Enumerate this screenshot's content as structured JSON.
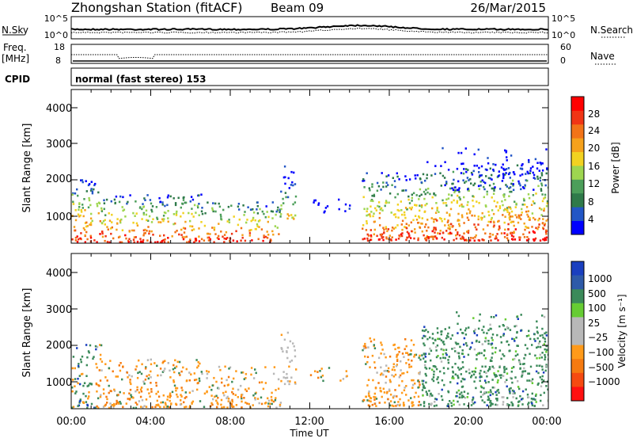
{
  "header": {
    "title": "Zhongshan Station (fitACF)",
    "beam": "Beam 09",
    "date": "26/Mar/2015"
  },
  "strip_noise": {
    "left_label": "N.Sky",
    "left_ticks": [
      "10^5",
      "10^0"
    ],
    "right_label": "N.Search",
    "right_ticks": [
      "10^5",
      "10^0"
    ]
  },
  "strip_freq": {
    "left_label_1": "Freq.",
    "left_label_2": "[MHz]",
    "left_ticks": [
      "18",
      "8"
    ],
    "right_label": "Nave",
    "right_ticks": [
      "60",
      "0"
    ]
  },
  "strip_cpid": {
    "label": "CPID",
    "text": "normal (fast stereo) 153"
  },
  "colors": {
    "power_scale": [
      "#0000ff",
      "#2256c6",
      "#2f7a4a",
      "#4c9e5a",
      "#9ed650",
      "#f2d221",
      "#f5a11c",
      "#f27318",
      "#f03515",
      "#ff0000"
    ],
    "velocity_scale": [
      "#1a3fbf",
      "#2e5aa8",
      "#3b8a5a",
      "#66cc33",
      "#b8b8b8",
      "#b8b8b8",
      "#ff9a1a",
      "#f57a10",
      "#f54a10",
      "#ff1010"
    ]
  },
  "chart_data": [
    {
      "type": "heatmap",
      "name": "power",
      "ylabel": "Slant Range [km]",
      "yticks": [
        "1000",
        "2000",
        "3000",
        "4000"
      ],
      "ylim": [
        300,
        4600
      ],
      "xlim": [
        0,
        24
      ],
      "colorbar_label": "Power [dB]",
      "colorbar_ticks": [
        "4",
        "8",
        "12",
        "16",
        "20",
        "24",
        "28"
      ],
      "colorbar_range": [
        0,
        30
      ]
    },
    {
      "type": "heatmap",
      "name": "velocity",
      "ylabel": "Slant Range [km]",
      "yticks": [
        "1000",
        "2000",
        "3000",
        "4000"
      ],
      "ylim": [
        300,
        4600
      ],
      "xlim": [
        0,
        24
      ],
      "colorbar_label": "Velocity [m s⁻¹]",
      "colorbar_ticks": [
        "1000",
        "500",
        "100",
        "25",
        "−25",
        "−100",
        "−500",
        "−1000"
      ]
    }
  ],
  "xaxis": {
    "ticks": [
      "00:00",
      "04:00",
      "08:00",
      "12:00",
      "16:00",
      "20:00",
      "00:00"
    ],
    "label": "Time UT"
  }
}
